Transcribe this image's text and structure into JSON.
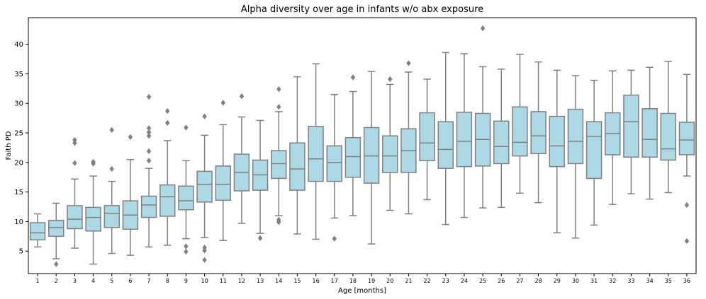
{
  "chart_data": {
    "type": "box",
    "title": "Alpha diversity over age in infants w/o abx exposure",
    "xlabel": "Age [months]",
    "ylabel": "Faith PD",
    "ylim": [
      1.2,
      44.5
    ],
    "yticks": [
      5,
      10,
      15,
      20,
      25,
      30,
      35,
      40
    ],
    "grid": false,
    "legend": "none",
    "box_color": "#add8e6",
    "line_color": "#808080",
    "categories": [
      "1",
      "2",
      "3",
      "4",
      "5",
      "6",
      "7",
      "8",
      "9",
      "10",
      "11",
      "12",
      "13",
      "14",
      "15",
      "16",
      "17",
      "18",
      "19",
      "20",
      "21",
      "22",
      "23",
      "24",
      "25",
      "26",
      "27",
      "28",
      "29",
      "30",
      "31",
      "32",
      "33",
      "34",
      "35",
      "36"
    ],
    "boxes": [
      {
        "label": "1",
        "whislo": 5.7,
        "q1": 6.9,
        "med": 8.1,
        "q3": 9.8,
        "whishi": 11.3,
        "fliers": []
      },
      {
        "label": "2",
        "whislo": 3.7,
        "q1": 7.5,
        "med": 9.0,
        "q3": 10.2,
        "whishi": 13.1,
        "fliers": [
          2.8
        ]
      },
      {
        "label": "3",
        "whislo": 5.5,
        "q1": 8.8,
        "med": 10.4,
        "q3": 12.7,
        "whishi": 17.2,
        "fliers": [
          19.9,
          23.3,
          23.8
        ]
      },
      {
        "label": "4",
        "whislo": 2.8,
        "q1": 8.4,
        "med": 10.7,
        "q3": 12.4,
        "whishi": 17.7,
        "fliers": [
          19.8,
          20.1
        ]
      },
      {
        "label": "5",
        "whislo": 4.6,
        "q1": 9.0,
        "med": 11.4,
        "q3": 12.7,
        "whishi": 16.8,
        "fliers": [
          18.9,
          25.5
        ]
      },
      {
        "label": "6",
        "whislo": 4.3,
        "q1": 8.7,
        "med": 11.1,
        "q3": 13.5,
        "whishi": 20.5,
        "fliers": [
          24.3
        ]
      },
      {
        "label": "7",
        "whislo": 5.7,
        "q1": 10.7,
        "med": 12.8,
        "q3": 14.3,
        "whishi": 19.0,
        "fliers": [
          20.3,
          21.9,
          24.5,
          25.1,
          25.8,
          31.1
        ]
      },
      {
        "label": "8",
        "whislo": 6.0,
        "q1": 10.9,
        "med": 14.2,
        "q3": 16.2,
        "whishi": 23.7,
        "fliers": [
          26.7,
          28.7
        ]
      },
      {
        "label": "9",
        "whislo": 7.1,
        "q1": 12.0,
        "med": 13.5,
        "q3": 16.0,
        "whishi": 20.3,
        "fliers": [
          4.9,
          5.8,
          25.9
        ]
      },
      {
        "label": "10",
        "whislo": 7.3,
        "q1": 13.3,
        "med": 16.3,
        "q3": 18.5,
        "whishi": 24.6,
        "fliers": [
          3.5,
          5.1,
          5.6,
          27.8
        ]
      },
      {
        "label": "11",
        "whislo": 6.8,
        "q1": 13.6,
        "med": 16.3,
        "q3": 19.4,
        "whishi": 26.4,
        "fliers": [
          30.1
        ]
      },
      {
        "label": "12",
        "whislo": 9.7,
        "q1": 15.2,
        "med": 18.3,
        "q3": 21.4,
        "whishi": 27.7,
        "fliers": [
          31.2
        ]
      },
      {
        "label": "13",
        "whislo": 8.0,
        "q1": 15.3,
        "med": 17.9,
        "q3": 20.4,
        "whishi": 27.1,
        "fliers": [
          7.2
        ]
      },
      {
        "label": "14",
        "whislo": 11.0,
        "q1": 17.3,
        "med": 19.8,
        "q3": 22.0,
        "whishi": 28.6,
        "fliers": [
          9.9,
          10.3,
          29.4,
          32.4
        ]
      },
      {
        "label": "15",
        "whislo": 7.9,
        "q1": 15.3,
        "med": 18.9,
        "q3": 23.3,
        "whishi": 34.5,
        "fliers": []
      },
      {
        "label": "16",
        "whislo": 7.0,
        "q1": 16.8,
        "med": 20.6,
        "q3": 26.1,
        "whishi": 36.7,
        "fliers": []
      },
      {
        "label": "17",
        "whislo": 10.6,
        "q1": 16.8,
        "med": 20.0,
        "q3": 22.8,
        "whishi": 31.5,
        "fliers": [
          7.1
        ]
      },
      {
        "label": "18",
        "whislo": 11.0,
        "q1": 17.5,
        "med": 21.0,
        "q3": 24.2,
        "whishi": 32.0,
        "fliers": [
          34.4
        ]
      },
      {
        "label": "19",
        "whislo": 6.2,
        "q1": 16.5,
        "med": 21.1,
        "q3": 25.9,
        "whishi": 35.4,
        "fliers": []
      },
      {
        "label": "20",
        "whislo": 11.9,
        "q1": 18.3,
        "med": 21.1,
        "q3": 24.5,
        "whishi": 33.2,
        "fliers": [
          34.1
        ]
      },
      {
        "label": "21",
        "whislo": 11.3,
        "q1": 18.3,
        "med": 22.0,
        "q3": 25.7,
        "whishi": 35.3,
        "fliers": [
          36.8
        ]
      },
      {
        "label": "22",
        "whislo": 13.7,
        "q1": 20.3,
        "med": 23.3,
        "q3": 28.4,
        "whishi": 34.1,
        "fliers": []
      },
      {
        "label": "23",
        "whislo": 9.5,
        "q1": 19.0,
        "med": 22.2,
        "q3": 26.9,
        "whishi": 38.6,
        "fliers": []
      },
      {
        "label": "24",
        "whislo": 10.7,
        "q1": 19.3,
        "med": 23.6,
        "q3": 28.5,
        "whishi": 38.4,
        "fliers": []
      },
      {
        "label": "25",
        "whislo": 12.3,
        "q1": 19.4,
        "med": 23.9,
        "q3": 28.3,
        "whishi": 36.2,
        "fliers": [
          42.7
        ]
      },
      {
        "label": "26",
        "whislo": 12.4,
        "q1": 19.8,
        "med": 22.7,
        "q3": 27.0,
        "whishi": 35.8,
        "fliers": []
      },
      {
        "label": "27",
        "whislo": 14.8,
        "q1": 21.1,
        "med": 23.4,
        "q3": 29.4,
        "whishi": 38.3,
        "fliers": []
      },
      {
        "label": "28",
        "whislo": 13.2,
        "q1": 21.5,
        "med": 24.5,
        "q3": 28.6,
        "whishi": 37.0,
        "fliers": []
      },
      {
        "label": "29",
        "whislo": 8.1,
        "q1": 19.3,
        "med": 22.8,
        "q3": 27.8,
        "whishi": 35.6,
        "fliers": []
      },
      {
        "label": "30",
        "whislo": 7.2,
        "q1": 19.8,
        "med": 23.6,
        "q3": 29.0,
        "whishi": 34.7,
        "fliers": []
      },
      {
        "label": "31",
        "whislo": 9.4,
        "q1": 17.3,
        "med": 24.4,
        "q3": 26.9,
        "whishi": 33.9,
        "fliers": []
      },
      {
        "label": "32",
        "whislo": 12.9,
        "q1": 21.3,
        "med": 24.9,
        "q3": 28.4,
        "whishi": 35.5,
        "fliers": []
      },
      {
        "label": "33",
        "whislo": 14.7,
        "q1": 20.9,
        "med": 26.9,
        "q3": 31.4,
        "whishi": 35.6,
        "fliers": []
      },
      {
        "label": "34",
        "whislo": 13.8,
        "q1": 20.9,
        "med": 23.9,
        "q3": 29.1,
        "whishi": 36.1,
        "fliers": []
      },
      {
        "label": "35",
        "whislo": 14.9,
        "q1": 20.4,
        "med": 22.3,
        "q3": 28.3,
        "whishi": 37.1,
        "fliers": []
      },
      {
        "label": "36",
        "whislo": 17.7,
        "q1": 21.3,
        "med": 23.8,
        "q3": 26.8,
        "whishi": 34.9,
        "fliers": [
          6.7,
          12.8
        ]
      }
    ]
  }
}
